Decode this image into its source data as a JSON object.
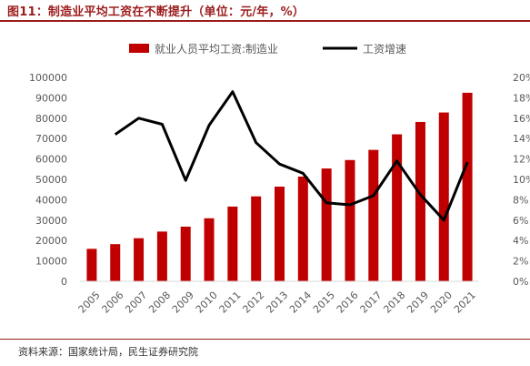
{
  "figure_title": "图11：制造业平均工资在不断提升（单位：元/年，%）",
  "source": "资料来源：国家统计局，民生证券研究院",
  "colors": {
    "bar": "#c00000",
    "line": "#000000",
    "accent": "#9b1c1c"
  },
  "chart_data": {
    "type": "bar",
    "title": "",
    "xlabel": "",
    "ylabel": "",
    "categories": [
      "2005",
      "2006",
      "2007",
      "2008",
      "2009",
      "2010",
      "2011",
      "2012",
      "2013",
      "2014",
      "2015",
      "2016",
      "2017",
      "2018",
      "2019",
      "2020",
      "2021"
    ],
    "series": [
      {
        "name": "就业人员平均工资:制造业",
        "type": "bar",
        "axis": "left",
        "values": [
          15934,
          18225,
          21144,
          24404,
          26810,
          30916,
          36665,
          41650,
          46431,
          51369,
          55324,
          59470,
          64452,
          72088,
          78147,
          82783,
          92459
        ]
      },
      {
        "name": "工资增速",
        "type": "line",
        "axis": "right",
        "values": [
          null,
          14.4,
          16.0,
          15.4,
          9.9,
          15.3,
          18.6,
          13.6,
          11.5,
          10.6,
          7.7,
          7.5,
          8.4,
          11.8,
          8.5,
          6.0,
          11.7
        ]
      }
    ],
    "y_left": {
      "ylim": [
        0,
        100000
      ],
      "ticks": [
        "0",
        "10000",
        "20000",
        "30000",
        "40000",
        "50000",
        "60000",
        "70000",
        "80000",
        "90000",
        "100000"
      ]
    },
    "y_right": {
      "ylim": [
        0,
        20
      ],
      "ticks": [
        "0%",
        "2%",
        "4%",
        "6%",
        "8%",
        "10%",
        "12%",
        "14%",
        "16%",
        "18%",
        "20%"
      ]
    },
    "grid": false,
    "legend_position": "top"
  }
}
